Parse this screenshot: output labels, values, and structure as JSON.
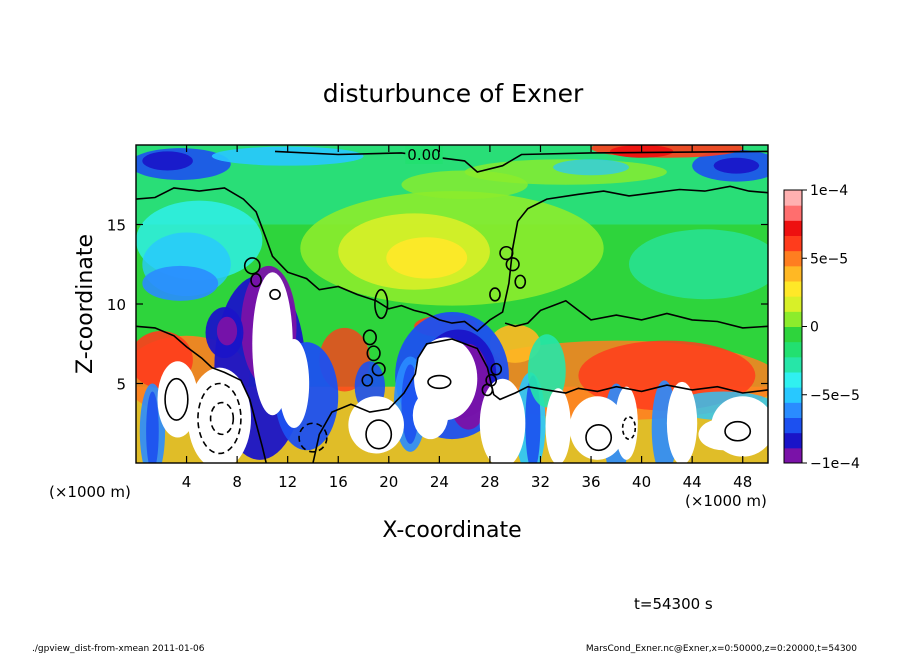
{
  "chart_data": {
    "type": "heatmap",
    "title": "disturbunce of Exner",
    "xlabel": "X-coordinate",
    "ylabel": "Z-coordinate",
    "x_unit_left": "(×1000 m)",
    "x_unit_right": "(×1000 m)",
    "xlim": [
      0,
      50
    ],
    "ylim": [
      0,
      20
    ],
    "x_ticks": [
      4,
      8,
      12,
      16,
      20,
      24,
      28,
      32,
      36,
      40,
      44,
      48
    ],
    "y_ticks": [
      5,
      10,
      15
    ],
    "contour_label": "0.00",
    "colorbar": {
      "min": -0.0001,
      "max": 0.0001,
      "tick_values": [
        0.0001,
        5e-05,
        0,
        -5e-05,
        -0.0001
      ],
      "tick_labels": [
        "1e−4",
        "5e−5",
        "0",
        "−5e−5",
        "−1e−4"
      ],
      "colors": [
        "#7a12a8",
        "#1a14c8",
        "#1c50f0",
        "#2a8cff",
        "#28c8ff",
        "#30f0f0",
        "#26e6a8",
        "#22e070",
        "#2ed43c",
        "#8cec2c",
        "#d8f028",
        "#ffe828",
        "#ffb824",
        "#ff7e20",
        "#ff3c1c",
        "#ee1010",
        "#ff6e6e",
        "#ffb0b0"
      ]
    },
    "time_label": "t=54300 s"
  },
  "footer": {
    "left": "./gpview_dist-from-xmean  2011-01-06",
    "right": "MarsCond_Exner.nc@Exner,x=0:50000,z=0:20000,t=54300"
  }
}
